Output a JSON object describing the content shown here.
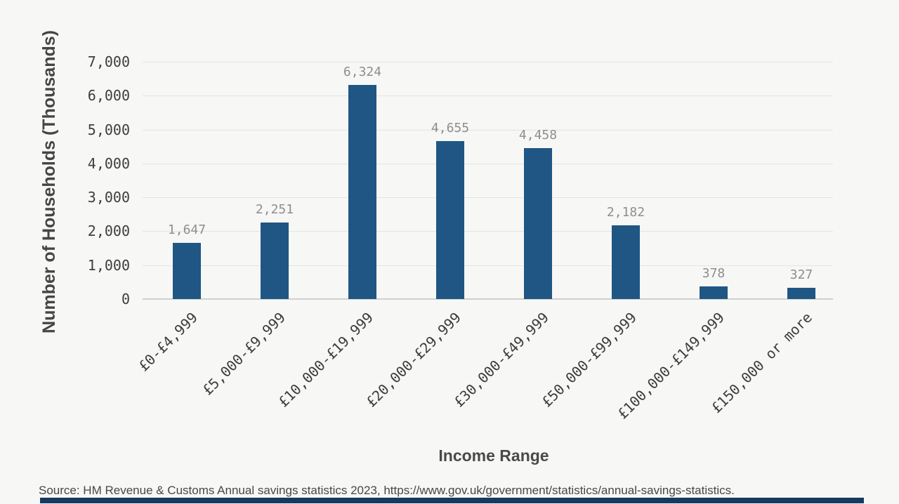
{
  "chart_data": {
    "type": "bar",
    "title": "",
    "xlabel": "Income Range",
    "ylabel": "Number of Households (Thousands)",
    "categories": [
      "£0-£4,999",
      "£5,000-£9,999",
      "£10,000-£19,999",
      "£20,000-£29,999",
      "£30,000-£49,999",
      "£50,000-£99,999",
      "£100,000-£149,999",
      "£150,000 or more"
    ],
    "values": [
      1647,
      2251,
      6324,
      4655,
      4458,
      2182,
      378,
      327
    ],
    "value_labels": [
      "1,647",
      "2,251",
      "6,324",
      "4,655",
      "4,458",
      "2,182",
      "378",
      "327"
    ],
    "ylim": [
      0,
      7000
    ],
    "yticks": [
      0,
      1000,
      2000,
      3000,
      4000,
      5000,
      6000,
      7000
    ],
    "ytick_labels": [
      "0",
      "1,000",
      "2,000",
      "3,000",
      "4,000",
      "5,000",
      "6,000",
      "7,000"
    ],
    "grid": "horizontal",
    "legend": "none",
    "bar_color": "#1f5684"
  },
  "footer": {
    "source_text": "Source: HM Revenue & Customs Annual savings statistics 2023, https://www.gov.uk/government/statistics/annual-savings-statistics.",
    "accent_bar_color": "#17395e"
  },
  "colors": {
    "background": "#f7f7f5",
    "gridline": "#e4e4e2",
    "axis_line": "#d0d0ce",
    "tick_text": "#3d3d3d",
    "value_label_text": "#8e8e8e",
    "axis_title_text": "#454545"
  }
}
